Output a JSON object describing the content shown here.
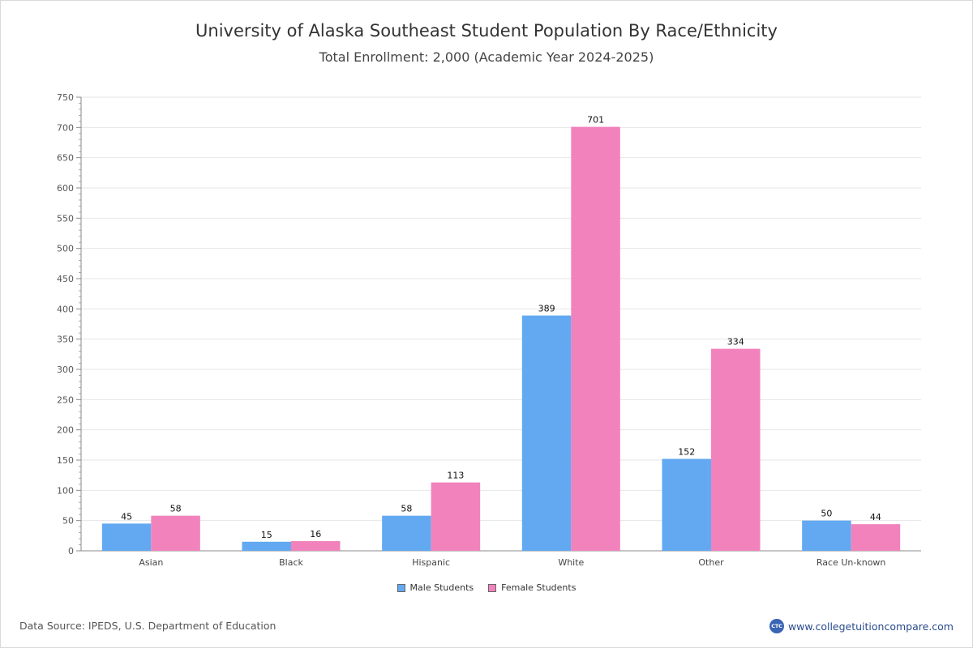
{
  "chart_data": {
    "type": "bar",
    "title": "University of Alaska Southeast Student Population By Race/Ethnicity",
    "subtitle": "Total Enrollment: 2,000 (Academic Year 2024-2025)",
    "categories": [
      "Asian",
      "Black",
      "Hispanic",
      "White",
      "Other",
      "Race Un-known"
    ],
    "series": [
      {
        "name": "Male Students",
        "color": "#62a9f2",
        "values": [
          45,
          15,
          58,
          389,
          152,
          50
        ]
      },
      {
        "name": "Female Students",
        "color": "#f282bc",
        "values": [
          58,
          16,
          113,
          701,
          334,
          44
        ]
      }
    ],
    "ylim": [
      0,
      750
    ],
    "yticks": [
      0,
      50,
      100,
      150,
      200,
      250,
      300,
      350,
      400,
      450,
      500,
      550,
      600,
      650,
      700,
      750
    ],
    "grid": true,
    "legend_position": "bottom-center"
  },
  "footer": {
    "source": "Data Source: IPEDS, U.S. Department of Education",
    "brand_logo_text": "CTC",
    "brand_url": "www.collegetuitioncompare.com"
  }
}
